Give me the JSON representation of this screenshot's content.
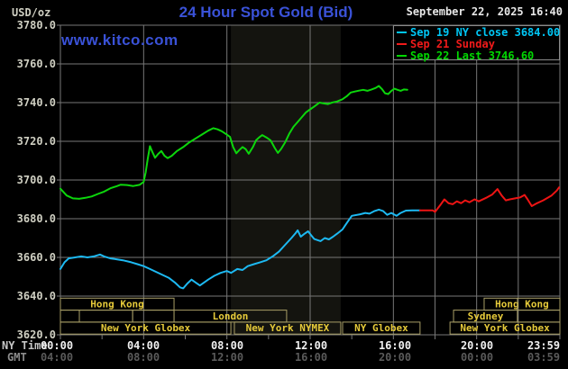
{
  "header": {
    "units_label": "USD/oz",
    "title": "24 Hour Spot Gold (Bid)",
    "watermark": "www.kitco.com",
    "datetime": "September 22, 2025 16:40"
  },
  "legend": {
    "items": [
      {
        "label": "Sep 19 NY close 3684.00",
        "color": "#00c6f5"
      },
      {
        "label": "Sep 21 Sunday",
        "color": "#f01a1a"
      },
      {
        "label": "Sep 22 Last 3746.60",
        "color": "#00d800"
      }
    ]
  },
  "axes": {
    "x_ny_label": "NY Time",
    "x_gmt_label": "GMT",
    "x_ny_ticks": [
      "00:00",
      "04:00",
      "08:00",
      "12:00",
      "16:00",
      "20:00",
      "23:59"
    ],
    "x_gmt_ticks": [
      "04:00",
      "08:00",
      "12:00",
      "16:00",
      "20:00",
      "00:00",
      "03:59"
    ],
    "y_ticks": [
      "3780.0",
      "3760.0",
      "3740.0",
      "3720.0",
      "3700.0",
      "3680.0",
      "3660.0",
      "3640.0",
      "3620.0"
    ]
  },
  "colors": {
    "background": "#000000",
    "grid": "#777777",
    "band": "#14140f",
    "session_border": "#a89e66",
    "session_text": "#e6ca3a",
    "axis_text": "#cfcfc2",
    "axis_text_bright": "#f0f0f0",
    "gmt_text": "#5a5a5a",
    "brand_blue": "#3a52d8"
  },
  "chart_data": {
    "type": "line",
    "title": "24 Hour Spot Gold (Bid)",
    "x_unit": "hours (NY Time)",
    "x_range": [
      0,
      24
    ],
    "y_range": [
      3620,
      3780
    ],
    "y_major_step": 20,
    "x_gridlines_hours": [
      4,
      8,
      12,
      16,
      18,
      20,
      22
    ],
    "nymex_band_hours": [
      8.19,
      13.47
    ],
    "legend_position": "top-right",
    "series": [
      {
        "name": "Sep 19 NY close 3684.00",
        "color": "#1db9f2",
        "points": [
          [
            0,
            3654
          ],
          [
            0.2,
            3657.5
          ],
          [
            0.4,
            3659.5
          ],
          [
            0.7,
            3660
          ],
          [
            1.0,
            3660.5
          ],
          [
            1.3,
            3660
          ],
          [
            1.6,
            3660.5
          ],
          [
            1.9,
            3661.5
          ],
          [
            2.1,
            3660.5
          ],
          [
            2.4,
            3659.5
          ],
          [
            2.7,
            3659
          ],
          [
            3.0,
            3658.5
          ],
          [
            3.4,
            3657.5
          ],
          [
            3.7,
            3656.5
          ],
          [
            4.0,
            3655.5
          ],
          [
            4.3,
            3654
          ],
          [
            4.6,
            3652.5
          ],
          [
            4.9,
            3651
          ],
          [
            5.2,
            3649.5
          ],
          [
            5.5,
            3647
          ],
          [
            5.75,
            3644.5
          ],
          [
            5.9,
            3644
          ],
          [
            6.1,
            3646.5
          ],
          [
            6.3,
            3648.5
          ],
          [
            6.5,
            3647
          ],
          [
            6.7,
            3645.5
          ],
          [
            6.9,
            3647
          ],
          [
            7.1,
            3648.5
          ],
          [
            7.4,
            3650.5
          ],
          [
            7.7,
            3652
          ],
          [
            8.0,
            3653
          ],
          [
            8.2,
            3652
          ],
          [
            8.5,
            3654
          ],
          [
            8.75,
            3653.5
          ],
          [
            9.0,
            3655.5
          ],
          [
            9.3,
            3656.5
          ],
          [
            9.6,
            3657.5
          ],
          [
            9.9,
            3658.5
          ],
          [
            10.2,
            3660.5
          ],
          [
            10.5,
            3663
          ],
          [
            10.8,
            3666.5
          ],
          [
            11.1,
            3670
          ],
          [
            11.3,
            3672.5
          ],
          [
            11.4,
            3674
          ],
          [
            11.55,
            3670.7
          ],
          [
            11.7,
            3672
          ],
          [
            11.9,
            3673.5
          ],
          [
            12.05,
            3671.4
          ],
          [
            12.2,
            3669.5
          ],
          [
            12.5,
            3668.4
          ],
          [
            12.7,
            3670
          ],
          [
            12.9,
            3669.3
          ],
          [
            13.1,
            3670.7
          ],
          [
            13.3,
            3672.3
          ],
          [
            13.55,
            3674.4
          ],
          [
            13.8,
            3678.4
          ],
          [
            14.0,
            3681.5
          ],
          [
            14.4,
            3682.3
          ],
          [
            14.65,
            3683
          ],
          [
            14.85,
            3682.6
          ],
          [
            15.1,
            3684
          ],
          [
            15.3,
            3684.7
          ],
          [
            15.5,
            3684
          ],
          [
            15.7,
            3682
          ],
          [
            15.9,
            3683
          ],
          [
            16.15,
            3681.5
          ],
          [
            16.35,
            3683
          ],
          [
            16.6,
            3684.2
          ],
          [
            16.9,
            3684.3
          ],
          [
            17.28,
            3684.3
          ]
        ]
      },
      {
        "name": "Sep 21 Sunday",
        "color": "#ee1414",
        "points": [
          [
            17.28,
            3684.3
          ],
          [
            17.9,
            3684.3
          ],
          [
            18.0,
            3683.5
          ],
          [
            18.25,
            3687
          ],
          [
            18.45,
            3690
          ],
          [
            18.65,
            3688
          ],
          [
            18.85,
            3687.5
          ],
          [
            19.05,
            3689
          ],
          [
            19.25,
            3688
          ],
          [
            19.45,
            3689.5
          ],
          [
            19.65,
            3688.5
          ],
          [
            19.9,
            3690
          ],
          [
            20.1,
            3689
          ],
          [
            20.5,
            3691
          ],
          [
            20.75,
            3692.5
          ],
          [
            21.0,
            3695.3
          ],
          [
            21.2,
            3692
          ],
          [
            21.4,
            3689.5
          ],
          [
            21.6,
            3690
          ],
          [
            21.85,
            3690.5
          ],
          [
            22.1,
            3691
          ],
          [
            22.3,
            3692.3
          ],
          [
            22.45,
            3690
          ],
          [
            22.65,
            3686.5
          ],
          [
            22.9,
            3688
          ],
          [
            23.2,
            3689.5
          ],
          [
            23.6,
            3692
          ],
          [
            23.85,
            3694.5
          ],
          [
            23.96,
            3696.2
          ]
        ]
      },
      {
        "name": "Sep 22 Last 3746.60",
        "color": "#0cd60c",
        "points": [
          [
            0,
            3695.5
          ],
          [
            0.3,
            3692
          ],
          [
            0.6,
            3690.5
          ],
          [
            0.9,
            3690.3
          ],
          [
            1.2,
            3690.8
          ],
          [
            1.5,
            3691.5
          ],
          [
            1.8,
            3692.8
          ],
          [
            2.1,
            3694
          ],
          [
            2.4,
            3695.7
          ],
          [
            2.7,
            3696.8
          ],
          [
            2.9,
            3697.6
          ],
          [
            3.2,
            3697.4
          ],
          [
            3.5,
            3696.9
          ],
          [
            3.8,
            3697.5
          ],
          [
            4.0,
            3699
          ],
          [
            4.1,
            3704
          ],
          [
            4.2,
            3711
          ],
          [
            4.3,
            3717.5
          ],
          [
            4.42,
            3714.5
          ],
          [
            4.55,
            3711.5
          ],
          [
            4.7,
            3713.5
          ],
          [
            4.85,
            3715
          ],
          [
            5.0,
            3712.5
          ],
          [
            5.15,
            3711.3
          ],
          [
            5.35,
            3712.5
          ],
          [
            5.6,
            3715
          ],
          [
            5.9,
            3717
          ],
          [
            6.2,
            3719.5
          ],
          [
            6.5,
            3721.5
          ],
          [
            6.8,
            3723.5
          ],
          [
            7.1,
            3725.5
          ],
          [
            7.35,
            3726.8
          ],
          [
            7.55,
            3726.2
          ],
          [
            7.75,
            3725.2
          ],
          [
            7.95,
            3723.8
          ],
          [
            8.15,
            3722.3
          ],
          [
            8.3,
            3717
          ],
          [
            8.45,
            3713.8
          ],
          [
            8.6,
            3715.5
          ],
          [
            8.75,
            3717
          ],
          [
            8.9,
            3716
          ],
          [
            9.05,
            3713.6
          ],
          [
            9.25,
            3717
          ],
          [
            9.4,
            3720.5
          ],
          [
            9.55,
            3722
          ],
          [
            9.7,
            3723.2
          ],
          [
            9.9,
            3722
          ],
          [
            10.1,
            3720.5
          ],
          [
            10.3,
            3716.5
          ],
          [
            10.45,
            3714
          ],
          [
            10.6,
            3716
          ],
          [
            10.8,
            3719.5
          ],
          [
            11.0,
            3724
          ],
          [
            11.2,
            3727.5
          ],
          [
            11.4,
            3730
          ],
          [
            11.6,
            3732.5
          ],
          [
            11.8,
            3735
          ],
          [
            12.0,
            3736.5
          ],
          [
            12.2,
            3738
          ],
          [
            12.45,
            3740
          ],
          [
            12.65,
            3739.6
          ],
          [
            12.85,
            3739.2
          ],
          [
            13.05,
            3740
          ],
          [
            13.3,
            3740.6
          ],
          [
            13.55,
            3741.7
          ],
          [
            13.75,
            3743.2
          ],
          [
            13.95,
            3745.2
          ],
          [
            14.15,
            3745.7
          ],
          [
            14.35,
            3746.2
          ],
          [
            14.55,
            3746.6
          ],
          [
            14.75,
            3746.1
          ],
          [
            14.95,
            3746.8
          ],
          [
            15.15,
            3747.6
          ],
          [
            15.3,
            3748.6
          ],
          [
            15.45,
            3747
          ],
          [
            15.6,
            3744.8
          ],
          [
            15.75,
            3744.4
          ],
          [
            15.9,
            3746
          ],
          [
            16.05,
            3747.2
          ],
          [
            16.2,
            3746.6
          ],
          [
            16.35,
            3746.1
          ],
          [
            16.5,
            3746.8
          ],
          [
            16.67,
            3746.6
          ]
        ]
      }
    ],
    "sessions": [
      {
        "row": 0,
        "t0": 0,
        "t1": 5.46,
        "label": "Hong Kong"
      },
      {
        "row": 0,
        "t0": 20.36,
        "t1": 24,
        "label": "Hong Kong"
      },
      {
        "row": 1,
        "t0": 0,
        "t1": 0.91,
        "label": ""
      },
      {
        "row": 1,
        "t0": 0.91,
        "t1": 3.47,
        "label": ""
      },
      {
        "row": 1,
        "t0": 3.47,
        "t1": 5.46,
        "label": ""
      },
      {
        "row": 1,
        "t0": 5.46,
        "t1": 10.87,
        "label": "London"
      },
      {
        "row": 1,
        "t0": 18.89,
        "t1": 21.96,
        "label": "Sydney"
      },
      {
        "row": 1,
        "t0": 21.96,
        "t1": 24,
        "label": ""
      },
      {
        "row": 2,
        "t0": 0,
        "t1": 8.19,
        "label": "New York Globex"
      },
      {
        "row": 2,
        "t0": 8.36,
        "t1": 13.47,
        "label": "New York NYMEX"
      },
      {
        "row": 2,
        "t0": 13.56,
        "t1": 17.28,
        "label": "NY Globex"
      },
      {
        "row": 2,
        "t0": 18.72,
        "t1": 24,
        "label": "New York Globex"
      }
    ],
    "session_dividers": [
      {
        "row": 0,
        "t": 21.96
      }
    ]
  }
}
